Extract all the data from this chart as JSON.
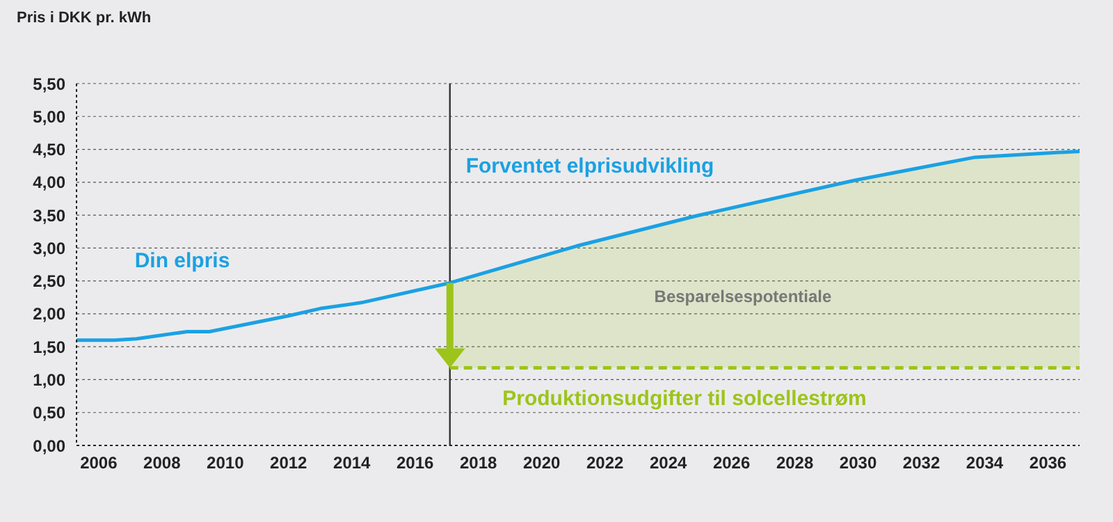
{
  "chart_data": {
    "type": "line",
    "ylabel": "Pris i DKK pr. kWh",
    "xlim": [
      2005.3,
      2037
    ],
    "xticks": [
      2006,
      2008,
      2010,
      2012,
      2014,
      2016,
      2018,
      2020,
      2022,
      2024,
      2026,
      2028,
      2030,
      2032,
      2034,
      2036
    ],
    "ylim": [
      0,
      5.5
    ],
    "yticks": [
      {
        "value": 0,
        "label": "0,00"
      },
      {
        "value": 0.5,
        "label": "0,50"
      },
      {
        "value": 1,
        "label": "1,00"
      },
      {
        "value": 1.5,
        "label": "1,50"
      },
      {
        "value": 2,
        "label": "2,00"
      },
      {
        "value": 2.5,
        "label": "2,50"
      },
      {
        "value": 3,
        "label": "3,00"
      },
      {
        "value": 3.5,
        "label": "3,50"
      },
      {
        "value": 4,
        "label": "4,00"
      },
      {
        "value": 4.5,
        "label": "4,50"
      },
      {
        "value": 5,
        "label": "5,00"
      },
      {
        "value": 5.5,
        "label": "5,50"
      }
    ],
    "grid": "y",
    "legend": false,
    "marker": "none",
    "series": [
      {
        "color": "#1ba1e2",
        "x": [
          2005.3,
          2006.5,
          2007.2,
          2008.8,
          2009.5,
          2012,
          2013,
          2014.3,
          2017.1,
          2021.1,
          2024.9,
          2029.9,
          2033.7,
          2037
        ],
        "values": [
          1.6,
          1.6,
          1.62,
          1.73,
          1.73,
          1.97,
          2.08,
          2.17,
          2.47,
          3.03,
          3.49,
          4.03,
          4.38,
          4.47
        ]
      },
      {
        "color": "#9dc41a",
        "line_style": "dashed",
        "x": [
          2017.1,
          2021.1,
          2024.9,
          2029.9,
          2033.7,
          2037
        ],
        "values": [
          1.18,
          1.18,
          1.18,
          1.18,
          1.18,
          1.18
        ],
        "lower": [
          1.18,
          1.18,
          1.18,
          1.18,
          1.18,
          1.18
        ],
        "upper": [
          2.47,
          3.03,
          3.49,
          4.03,
          4.38,
          4.47
        ]
      }
    ],
    "ref_lines": [
      {
        "axis": "x",
        "value": 2017.1,
        "color": "#333333"
      }
    ],
    "annotations": [
      "Din elpris",
      "Forventet elprisudvikling",
      "Produktionsudgifter til solcellestrøm",
      "Besparelsespotentiale"
    ]
  }
}
